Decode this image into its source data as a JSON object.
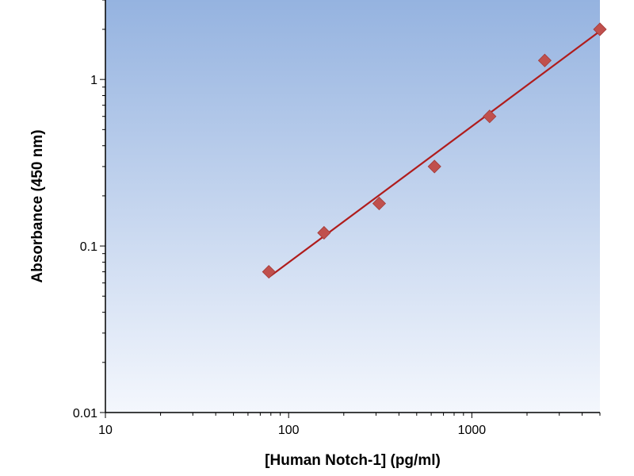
{
  "chart_data": {
    "type": "scatter",
    "title": "",
    "xlabel": "[Human Notch-1] (pg/ml)",
    "ylabel": "Absorbance (450 nm)",
    "xscale": "log",
    "yscale": "log",
    "xlim": [
      10,
      5000
    ],
    "ylim": [
      0.01,
      3
    ],
    "x_ticks": [
      {
        "value": 10,
        "label": "10"
      },
      {
        "value": 100,
        "label": "100"
      },
      {
        "value": 1000,
        "label": "1000"
      }
    ],
    "y_ticks": [
      {
        "value": 0.01,
        "label": "0.01"
      },
      {
        "value": 0.1,
        "label": "0.1"
      },
      {
        "value": 1,
        "label": "1"
      }
    ],
    "grid": false,
    "legend": "none",
    "series": [
      {
        "points": [
          {
            "x": 78,
            "y": 0.07
          },
          {
            "x": 156,
            "y": 0.12
          },
          {
            "x": 312,
            "y": 0.18
          },
          {
            "x": 625,
            "y": 0.3
          },
          {
            "x": 1250,
            "y": 0.6
          },
          {
            "x": 2500,
            "y": 1.3
          },
          {
            "x": 5000,
            "y": 2.0
          }
        ],
        "marker": "diamond",
        "color": "#c0504d"
      }
    ],
    "fit_line": {
      "from": {
        "x": 78,
        "y": 0.065
      },
      "to": {
        "x": 5000,
        "y": 1.95
      },
      "color": "#b01c1c"
    },
    "colors": {
      "plot_bg_top": "#95b3e0",
      "plot_bg_bottom": "#f4f7fd",
      "axis": "#000000"
    }
  }
}
